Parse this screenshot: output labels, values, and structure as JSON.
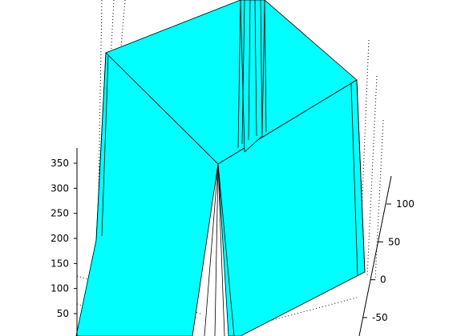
{
  "chart_data": {
    "type": "surface",
    "title": "",
    "surface_color": "#00ffff",
    "edge_color": "#000000",
    "grid": true,
    "z_axis": {
      "label": "",
      "ticks": [
        50,
        100,
        150,
        200,
        250,
        300,
        350
      ]
    },
    "y_axis": {
      "label": "",
      "ticks": [
        100,
        50,
        0,
        -50
      ]
    }
  }
}
